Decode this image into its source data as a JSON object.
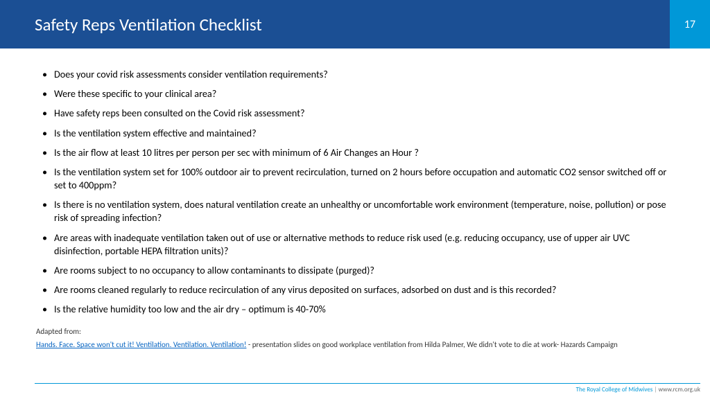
{
  "header": {
    "title": "Safety Reps Ventilation Checklist",
    "page_number": "17"
  },
  "bullets": [
    "Does your covid risk assessments consider ventilation requirements?",
    "Were these specific to your clinical area?",
    "Have safety reps been consulted on the Covid risk assessment?",
    "Is the ventilation system effective and maintained?",
    "Is the air flow at least 10 litres per person per sec with minimum of 6 Air Changes an Hour ?",
    "Is the ventilation system set for 100% outdoor air to prevent recirculation, turned on 2 hours before occupation and automatic CO2 sensor switched off or set to 400ppm?",
    "Is there is no ventilation system, does natural ventilation create an unhealthy or uncomfortable work environment (temperature, noise, pollution) or pose risk of spreading infection?",
    "Are areas with inadequate ventilation taken out of use or alternative methods to reduce risk used (e.g. reducing occupancy, use of upper air UVC disinfection, portable HEPA filtration units)?",
    "Are rooms subject to no occupancy to allow contaminants to dissipate (purged)?",
    "Are rooms cleaned regularly to reduce recirculation of any virus deposited on surfaces, adsorbed on dust and is this recorded?",
    "Is the relative humidity too low and the air dry – optimum is 40-70%"
  ],
  "attribution": {
    "label": "Adapted from:",
    "link_text": "Hands. Face. Space won't cut it! Ventilation. Ventilation. Ventilation!",
    "rest": " - presentation slides on good workplace ventilation  from Hilda Palmer, We didn't vote to die at work- Hazards Campaign"
  },
  "footer": {
    "org": "The Royal College of Midwives",
    "sep": " | ",
    "url": "www.rcm.org.uk"
  },
  "colors": {
    "header_bg": "#1b4f94",
    "badge_bg": "#0098d8",
    "link": "#0563c1"
  }
}
